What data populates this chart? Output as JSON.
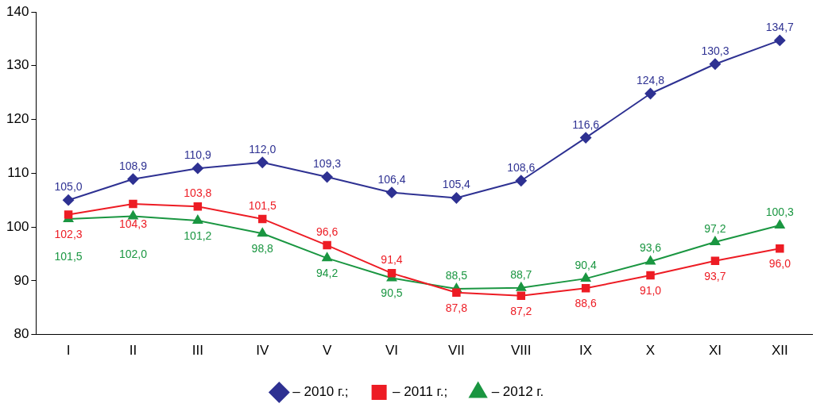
{
  "chart_data": {
    "type": "line",
    "categories": [
      "I",
      "II",
      "III",
      "IV",
      "V",
      "VI",
      "VII",
      "VIII",
      "IX",
      "X",
      "XI",
      "XII"
    ],
    "ylim": [
      80,
      140
    ],
    "yticks": [
      80,
      90,
      100,
      110,
      120,
      130,
      140
    ],
    "grid": false,
    "legend": "bottom",
    "line_style": "solid",
    "series": [
      {
        "name": "– 2010 г.;",
        "color": "#2e3192",
        "marker": "diamond",
        "values": [
          105.0,
          108.9,
          110.9,
          112.0,
          109.3,
          106.4,
          105.4,
          108.6,
          116.6,
          124.8,
          130.3,
          134.7
        ],
        "value_labels": [
          "105,0",
          "108,9",
          "110,9",
          "112,0",
          "109,3",
          "106,4",
          "105,4",
          "108,6",
          "116,6",
          "124,8",
          "130,3",
          "134,7"
        ]
      },
      {
        "name": "– 2011 г.;",
        "color": "#ed1c24",
        "marker": "square",
        "values": [
          102.3,
          104.3,
          103.8,
          101.5,
          96.6,
          91.4,
          87.8,
          87.2,
          88.6,
          91.0,
          93.7,
          96.0
        ],
        "value_labels": [
          "102,3",
          "104,3",
          "103,8",
          "101,5",
          "96,6",
          "91,4",
          "87,8",
          "87,2",
          "88,6",
          "91,0",
          "93,7",
          "96,0"
        ]
      },
      {
        "name": "– 2012 г.",
        "color": "#1a9641",
        "marker": "triangle",
        "values": [
          101.5,
          102.0,
          101.2,
          98.8,
          94.2,
          90.5,
          88.5,
          88.7,
          90.4,
          93.6,
          97.2,
          100.3
        ],
        "value_labels": [
          "101,5",
          "102,0",
          "101,2",
          "98,8",
          "94,2",
          "90,5",
          "88,5",
          "88,7",
          "90,4",
          "93,6",
          "97,2",
          "100,3"
        ]
      }
    ]
  }
}
